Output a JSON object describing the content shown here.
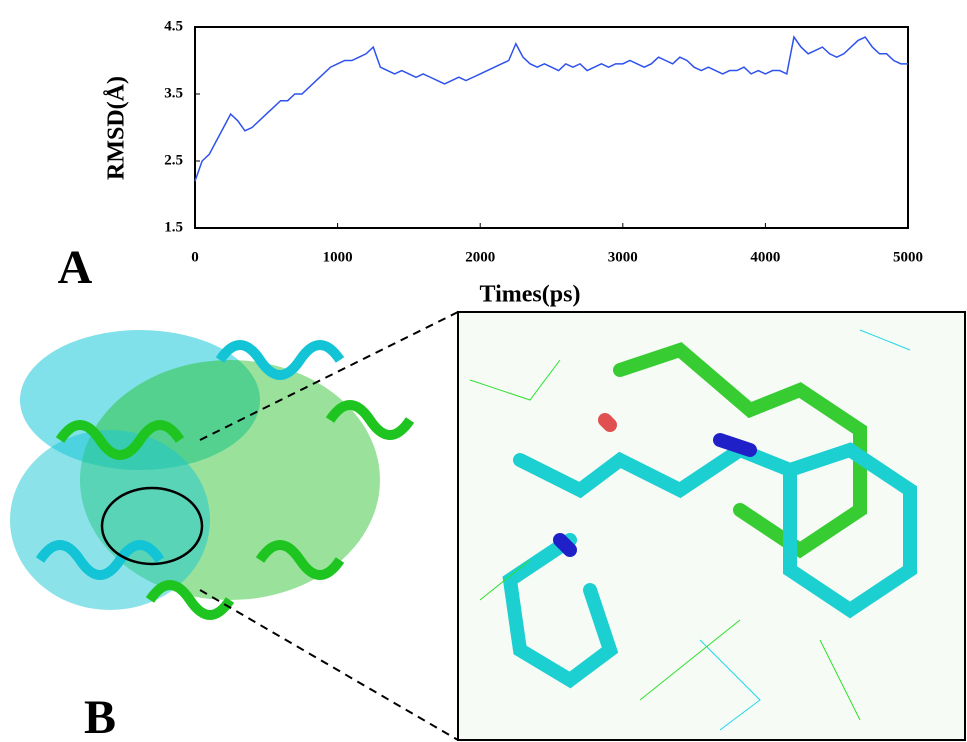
{
  "chart_data": {
    "type": "line",
    "ylabel": "RMSD(Å)",
    "xlabel": "Times(ps)",
    "color": "#2f52ee",
    "x": [
      0,
      50,
      100,
      150,
      200,
      250,
      300,
      350,
      400,
      450,
      500,
      550,
      600,
      650,
      700,
      750,
      800,
      850,
      900,
      950,
      1000,
      1050,
      1100,
      1150,
      1200,
      1250,
      1300,
      1350,
      1400,
      1450,
      1500,
      1550,
      1600,
      1650,
      1700,
      1750,
      1800,
      1850,
      1900,
      1950,
      2000,
      2050,
      2100,
      2150,
      2200,
      2250,
      2300,
      2350,
      2400,
      2450,
      2500,
      2550,
      2600,
      2650,
      2700,
      2750,
      2800,
      2850,
      2900,
      2950,
      3000,
      3050,
      3100,
      3150,
      3200,
      3250,
      3300,
      3350,
      3400,
      3450,
      3500,
      3550,
      3600,
      3650,
      3700,
      3750,
      3800,
      3850,
      3900,
      3950,
      4000,
      4050,
      4100,
      4150,
      4200,
      4250,
      4300,
      4350,
      4400,
      4450,
      4500,
      4550,
      4600,
      4650,
      4700,
      4750,
      4800,
      4850,
      4900,
      4950,
      5000
    ],
    "values": [
      2.2,
      2.5,
      2.6,
      2.8,
      3.0,
      3.2,
      3.1,
      2.95,
      3.0,
      3.1,
      3.2,
      3.3,
      3.4,
      3.4,
      3.5,
      3.5,
      3.6,
      3.7,
      3.8,
      3.9,
      3.95,
      4.0,
      4.0,
      4.05,
      4.1,
      4.2,
      3.9,
      3.85,
      3.8,
      3.85,
      3.8,
      3.75,
      3.8,
      3.75,
      3.7,
      3.65,
      3.7,
      3.75,
      3.7,
      3.75,
      3.8,
      3.85,
      3.9,
      3.95,
      4.0,
      4.25,
      4.05,
      3.95,
      3.9,
      3.95,
      3.9,
      3.85,
      3.95,
      3.9,
      3.95,
      3.85,
      3.9,
      3.95,
      3.9,
      3.95,
      3.95,
      4.0,
      3.95,
      3.9,
      3.95,
      4.05,
      4.0,
      3.95,
      4.05,
      4.0,
      3.9,
      3.85,
      3.9,
      3.85,
      3.8,
      3.85,
      3.85,
      3.9,
      3.8,
      3.85,
      3.8,
      3.85,
      3.85,
      3.8,
      4.35,
      4.2,
      4.1,
      4.15,
      4.2,
      4.1,
      4.05,
      4.1,
      4.2,
      4.3,
      4.35,
      4.2,
      4.1,
      4.1,
      4.0,
      3.95,
      3.95
    ],
    "xlim": [
      0,
      5000
    ],
    "xticks": [
      0,
      1000,
      2000,
      3000,
      4000,
      5000
    ],
    "ylim": [
      1.5,
      4.5
    ],
    "yticks": [
      1.5,
      2.5,
      3.5,
      4.5
    ]
  },
  "panels": {
    "a": "A",
    "b": "B"
  }
}
